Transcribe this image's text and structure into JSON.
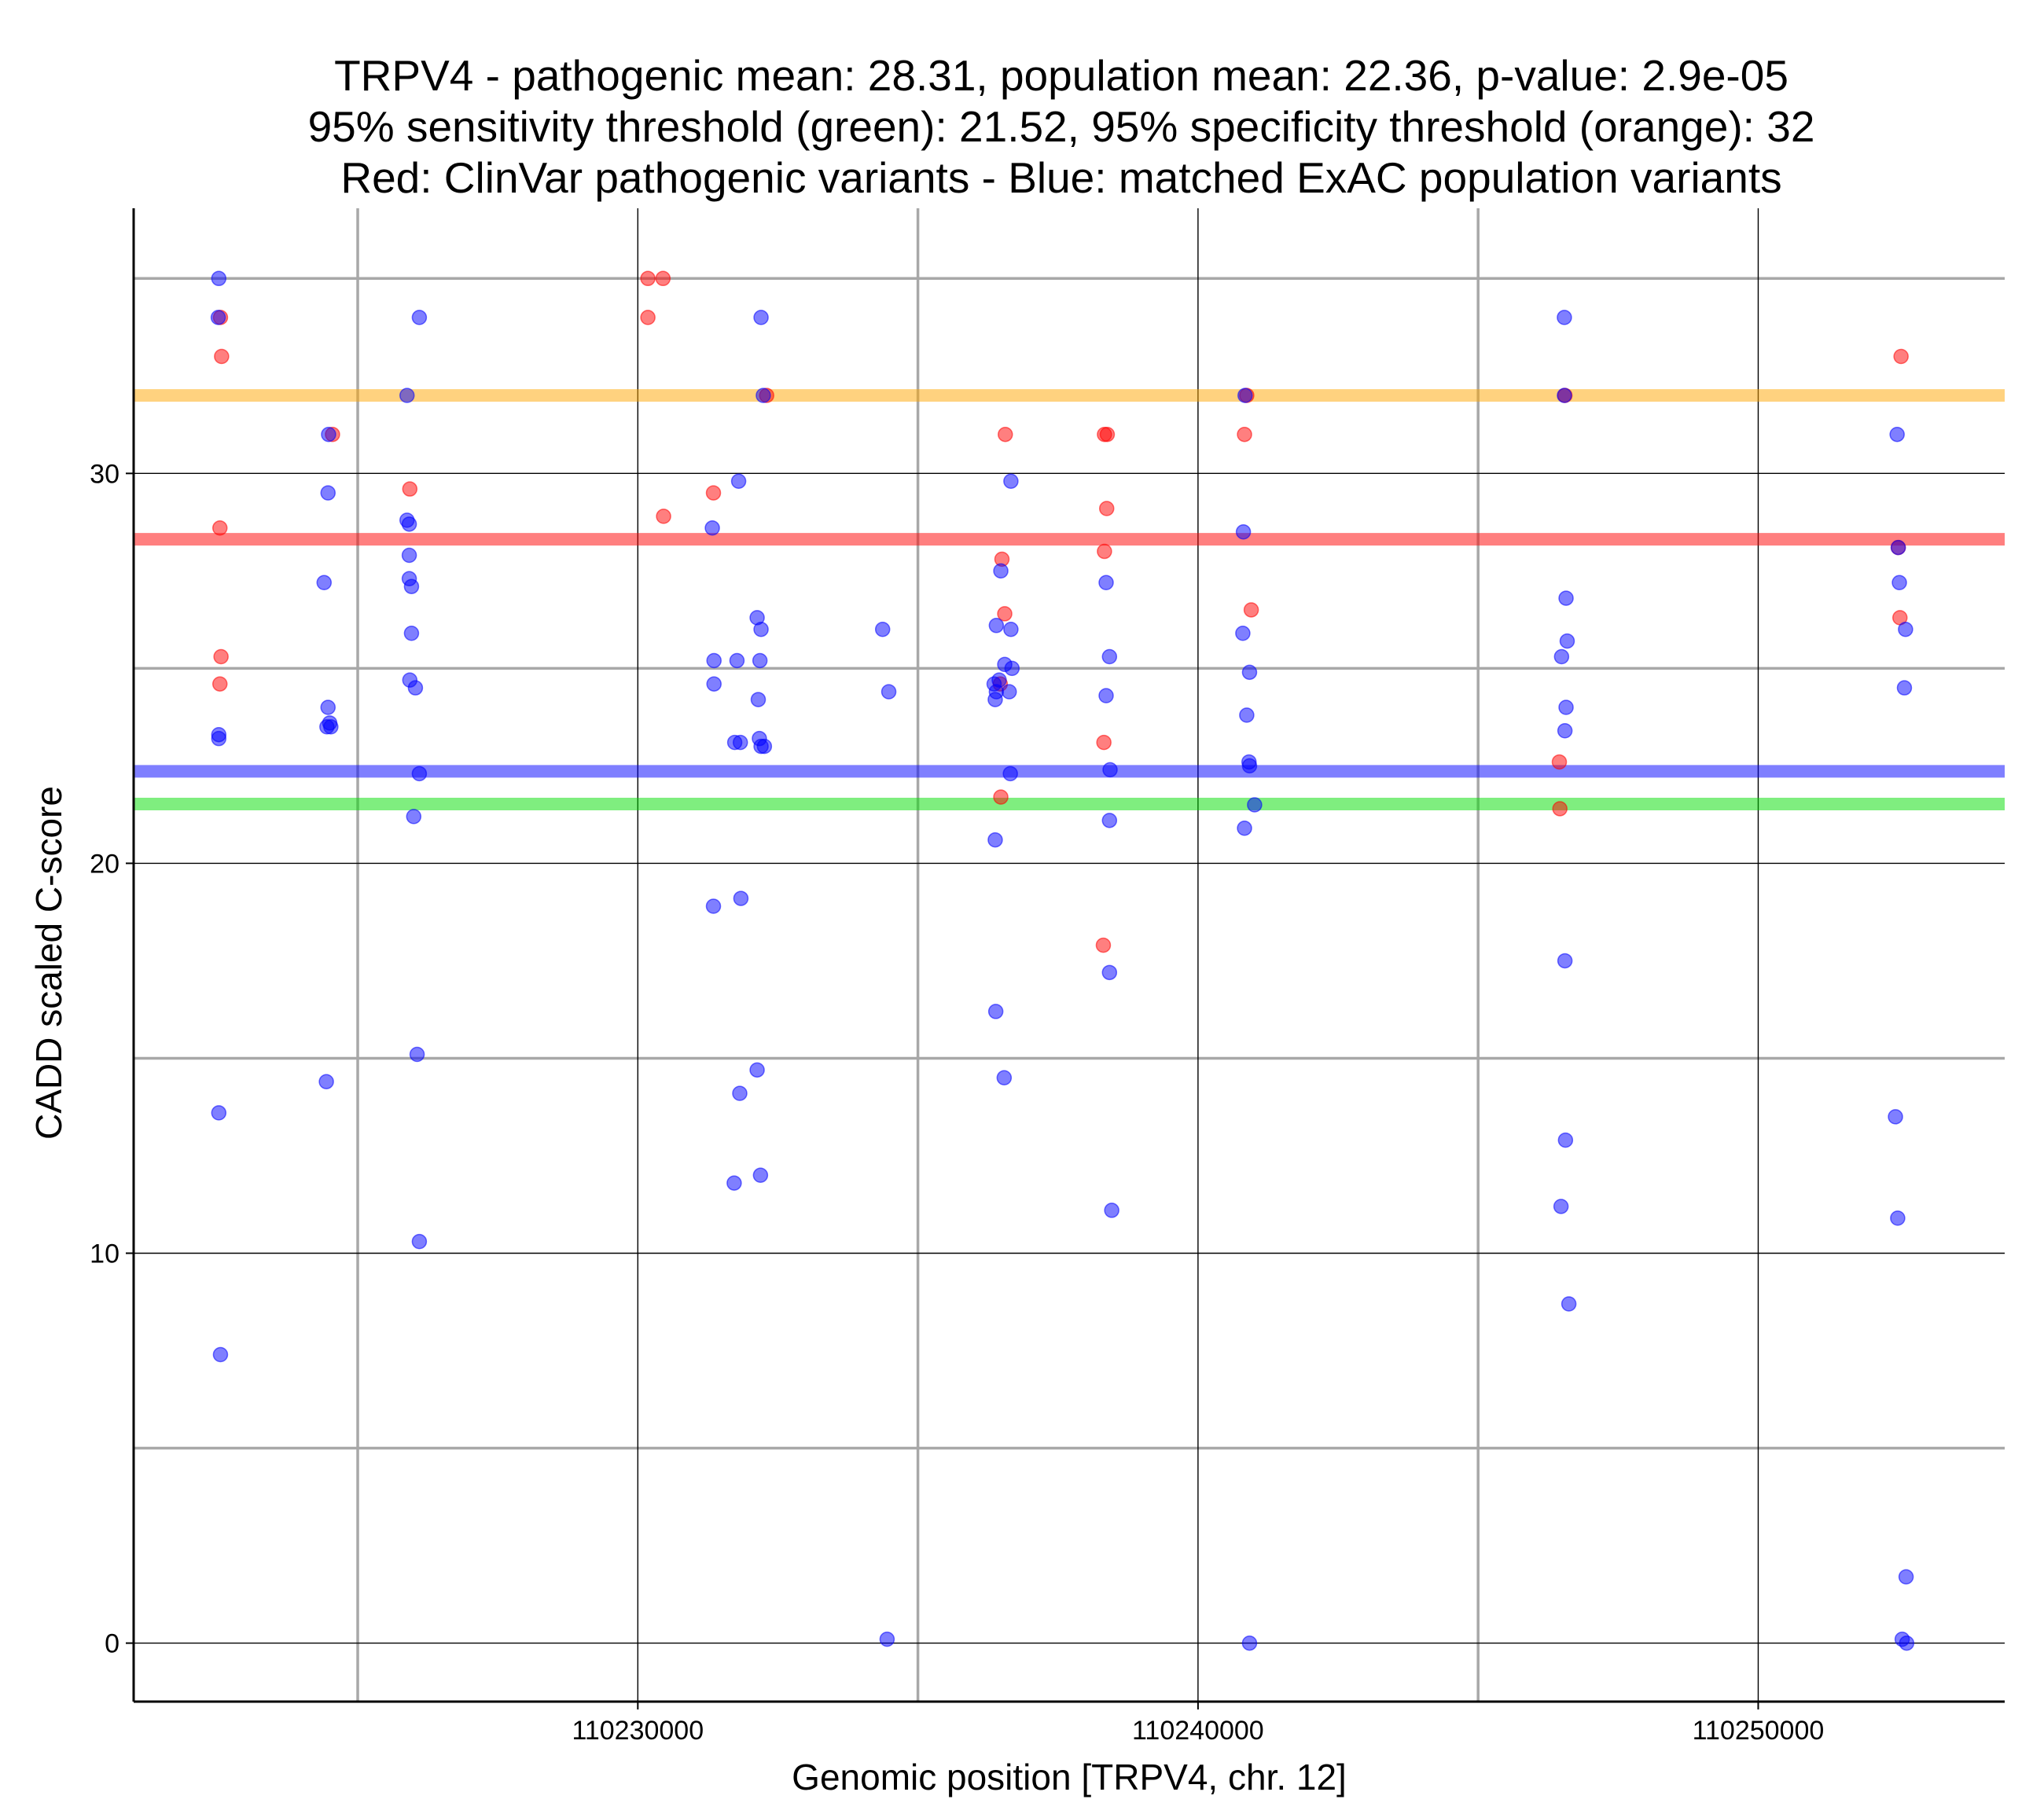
{
  "chart_data": {
    "type": "scatter",
    "title_lines": [
      "TRPV4 - pathogenic mean: 28.31, population mean: 22.36, p-value: 2.9e-05",
      "95% sensitivity threshold (green): 21.52, 95% specificity threshold (orange): 32",
      "Red: ClinVar pathogenic variants - Blue: matched ExAC population variants"
    ],
    "xlabel": "Genomic position [TRPV4, chr. 12]",
    "ylabel": "CADD scaled C-score",
    "xlim": [
      110221000,
      110254400
    ],
    "ylim": [
      -1.5,
      36.8
    ],
    "x_ticks": [
      110230000,
      110240000,
      110250000
    ],
    "x_tick_labels": [
      "110230000",
      "110240000",
      "110250000"
    ],
    "x_minor_grid": [
      110225000,
      110235000,
      110245000
    ],
    "y_ticks": [
      0,
      10,
      20,
      30
    ],
    "y_tick_labels": [
      "0",
      "10",
      "20",
      "30"
    ],
    "y_minor_grid": [
      5,
      15,
      25,
      35
    ],
    "grid": true,
    "hlines": [
      {
        "label": "95% specificity threshold (orange)",
        "y": 32,
        "color": "#FFA500"
      },
      {
        "label": "pathogenic mean",
        "y": 28.31,
        "color": "#FF0000"
      },
      {
        "label": "population mean",
        "y": 22.36,
        "color": "#0000FF"
      },
      {
        "label": "95% sensitivity threshold (green)",
        "y": 21.52,
        "color": "#00DD00"
      }
    ],
    "series": [
      {
        "name": "ClinVar pathogenic variants",
        "color": "#FF0000",
        "points": [
          [
            110222550,
            34
          ],
          [
            110222570,
            33
          ],
          [
            110222540,
            28.6
          ],
          [
            110222560,
            25.3
          ],
          [
            110222540,
            24.6
          ],
          [
            110224550,
            31
          ],
          [
            110225930,
            29.6
          ],
          [
            110230180,
            35
          ],
          [
            110230450,
            35
          ],
          [
            110230180,
            34
          ],
          [
            110230460,
            28.9
          ],
          [
            110231350,
            29.5
          ],
          [
            110232300,
            32
          ],
          [
            110236560,
            31
          ],
          [
            110236500,
            27.8
          ],
          [
            110236550,
            26.4
          ],
          [
            110236470,
            24.6
          ],
          [
            110236480,
            21.7
          ],
          [
            110238330,
            31
          ],
          [
            110238380,
            31
          ],
          [
            110238370,
            29.1
          ],
          [
            110238330,
            28
          ],
          [
            110238320,
            23.1
          ],
          [
            110238310,
            17.9
          ],
          [
            110240830,
            31
          ],
          [
            110240870,
            32
          ],
          [
            110240950,
            26.5
          ],
          [
            110246550,
            32
          ],
          [
            110246450,
            22.6
          ],
          [
            110246460,
            21.4
          ],
          [
            110252550,
            33
          ],
          [
            110252500,
            28.1
          ],
          [
            110252530,
            26.3
          ]
        ]
      },
      {
        "name": "matched ExAC population variants",
        "color": "#0000FF",
        "points": [
          [
            110222520,
            35
          ],
          [
            110222510,
            34
          ],
          [
            110222520,
            23.3
          ],
          [
            110222520,
            23.2
          ],
          [
            110222520,
            13.6
          ],
          [
            110222550,
            7.4
          ],
          [
            110224480,
            31
          ],
          [
            110224470,
            29.5
          ],
          [
            110224400,
            27.2
          ],
          [
            110224470,
            24
          ],
          [
            110224450,
            23.5
          ],
          [
            110224520,
            23.5
          ],
          [
            110224500,
            23.6
          ],
          [
            110224440,
            14.4
          ],
          [
            110226100,
            34
          ],
          [
            110225880,
            32
          ],
          [
            110225880,
            28.8
          ],
          [
            110225920,
            28.7
          ],
          [
            110225920,
            27.9
          ],
          [
            110225920,
            27.3
          ],
          [
            110225960,
            27.1
          ],
          [
            110225960,
            25.9
          ],
          [
            110225930,
            24.7
          ],
          [
            110226030,
            24.5
          ],
          [
            110226100,
            22.3
          ],
          [
            110226000,
            21.2
          ],
          [
            110226060,
            15.1
          ],
          [
            110226100,
            10.3
          ],
          [
            110232200,
            34
          ],
          [
            110232240,
            32
          ],
          [
            110231800,
            29.8
          ],
          [
            110231330,
            28.6
          ],
          [
            110232130,
            26.3
          ],
          [
            110232200,
            26
          ],
          [
            110231360,
            25.2
          ],
          [
            110231770,
            25.2
          ],
          [
            110232180,
            25.2
          ],
          [
            110231360,
            24.6
          ],
          [
            110232150,
            24.2
          ],
          [
            110231730,
            23.1
          ],
          [
            110231830,
            23.1
          ],
          [
            110232170,
            23.2
          ],
          [
            110232200,
            23
          ],
          [
            110232260,
            23
          ],
          [
            110231350,
            18.9
          ],
          [
            110231840,
            19.1
          ],
          [
            110232130,
            14.7
          ],
          [
            110231820,
            14.1
          ],
          [
            110231720,
            11.8
          ],
          [
            110232190,
            12
          ],
          [
            110234370,
            26
          ],
          [
            110234480,
            24.4
          ],
          [
            110234450,
            0.1
          ],
          [
            110236660,
            29.8
          ],
          [
            110236480,
            27.5
          ],
          [
            110236400,
            26.1
          ],
          [
            110236660,
            26
          ],
          [
            110236550,
            25.1
          ],
          [
            110236680,
            25
          ],
          [
            110236360,
            24.6
          ],
          [
            110236450,
            24.7
          ],
          [
            110236400,
            24.4
          ],
          [
            110236380,
            24.2
          ],
          [
            110236630,
            24.4
          ],
          [
            110236650,
            22.3
          ],
          [
            110236380,
            20.6
          ],
          [
            110236390,
            16.2
          ],
          [
            110236540,
            14.5
          ],
          [
            110238360,
            27.2
          ],
          [
            110238420,
            25.3
          ],
          [
            110238360,
            24.3
          ],
          [
            110238430,
            22.4
          ],
          [
            110238420,
            21.1
          ],
          [
            110238420,
            17.2
          ],
          [
            110238460,
            11.1
          ],
          [
            110240840,
            32
          ],
          [
            110240810,
            28.5
          ],
          [
            110240800,
            25.9
          ],
          [
            110240920,
            24.9
          ],
          [
            110240870,
            23.8
          ],
          [
            110240910,
            22.6
          ],
          [
            110240920,
            22.5
          ],
          [
            110241010,
            21.5
          ],
          [
            110240830,
            20.9
          ],
          [
            110240920,
            0
          ],
          [
            110246540,
            34
          ],
          [
            110246540,
            32
          ],
          [
            110246570,
            26.8
          ],
          [
            110246590,
            25.7
          ],
          [
            110246490,
            25.3
          ],
          [
            110246570,
            24
          ],
          [
            110246550,
            23.4
          ],
          [
            110246550,
            17.5
          ],
          [
            110246560,
            12.9
          ],
          [
            110246480,
            11.2
          ],
          [
            110246620,
            8.7
          ],
          [
            110252480,
            31
          ],
          [
            110252500,
            28.1
          ],
          [
            110252520,
            27.2
          ],
          [
            110252630,
            26
          ],
          [
            110252610,
            24.5
          ],
          [
            110252450,
            13.5
          ],
          [
            110252490,
            10.9
          ],
          [
            110252640,
            1.7
          ],
          [
            110252570,
            0.1
          ],
          [
            110252650,
            0
          ]
        ]
      }
    ]
  }
}
